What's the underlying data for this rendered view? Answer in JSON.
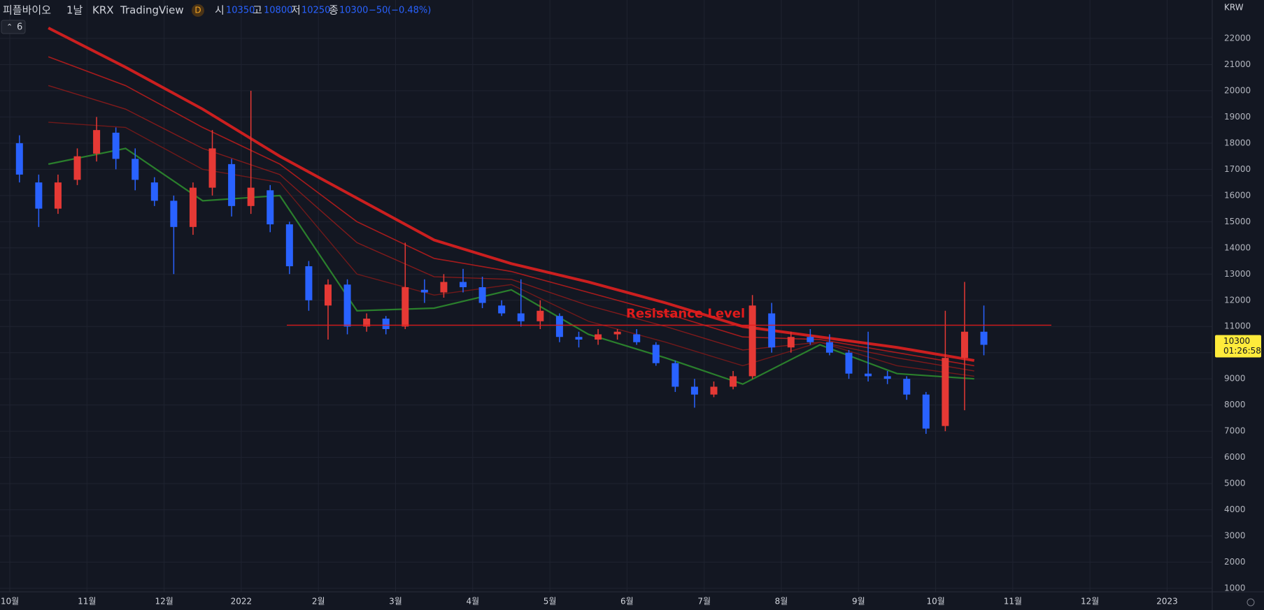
{
  "header": {
    "symbol": "피플바이오",
    "interval": "1날",
    "exchange": "KRX",
    "source": "TradingView",
    "badge": "D",
    "open_label": "시",
    "open": 10350,
    "high_label": "고",
    "high": 10800,
    "low_label": "저",
    "low": 10250,
    "close_label": "종",
    "close": 10300,
    "change": "−50",
    "change_pct": "(−0.48%)",
    "indicators": "6",
    "currency": "KRW"
  },
  "chart_data": {
    "type": "candlestick",
    "categories": [
      "10월",
      "11월",
      "12월",
      "2022",
      "2월",
      "3월",
      "4월",
      "5월",
      "6월",
      "7월",
      "8월",
      "9월",
      "10월",
      "11월",
      "12월",
      "2023"
    ],
    "ohlc": [
      [
        [
          18000,
          18300,
          16500,
          16800
        ],
        [
          16500,
          16800,
          14800,
          15500
        ],
        [
          15500,
          16800,
          15300,
          16500
        ],
        [
          16600,
          17800,
          16400,
          17500
        ]
      ],
      [
        [
          17600,
          19000,
          17300,
          18500
        ],
        [
          18400,
          18600,
          17000,
          17400
        ],
        [
          17400,
          17800,
          16200,
          16600
        ],
        [
          16500,
          16700,
          15600,
          15800
        ]
      ],
      [
        [
          15800,
          16000,
          13000,
          14800
        ],
        [
          14800,
          16500,
          14500,
          16300
        ],
        [
          16300,
          18500,
          16000,
          17800
        ],
        [
          17200,
          17400,
          15200,
          15600
        ]
      ],
      [
        [
          15600,
          20000,
          15300,
          16300
        ],
        [
          16200,
          16400,
          14600,
          14900
        ],
        [
          14900,
          15000,
          13000,
          13300
        ],
        [
          13300,
          13500,
          11600,
          12000
        ]
      ],
      [
        [
          11800,
          12800,
          10500,
          12600
        ],
        [
          12600,
          12800,
          10700,
          11000
        ],
        [
          11000,
          11500,
          10800,
          11300
        ],
        [
          11300,
          11400,
          10700,
          10900
        ]
      ],
      [
        [
          11000,
          14200,
          10900,
          12500
        ],
        [
          12400,
          12800,
          11900,
          12300
        ],
        [
          12300,
          13000,
          12100,
          12700
        ],
        [
          12700,
          13200,
          12300,
          12500
        ]
      ],
      [
        [
          12500,
          12900,
          11700,
          11900
        ],
        [
          11800,
          12000,
          11400,
          11500
        ],
        [
          11500,
          12800,
          11000,
          11200
        ],
        [
          11200,
          12000,
          10900,
          11600
        ]
      ],
      [
        [
          11400,
          11500,
          10400,
          10600
        ],
        [
          10600,
          10800,
          10200,
          10500
        ],
        [
          10500,
          10900,
          10300,
          10700
        ],
        [
          10700,
          10900,
          10500,
          10800
        ]
      ],
      [
        [
          10700,
          10900,
          10300,
          10400
        ],
        [
          10300,
          10400,
          9500,
          9600
        ],
        [
          9600,
          9700,
          8500,
          8700
        ],
        [
          8700,
          9000,
          7900,
          8400
        ]
      ],
      [
        [
          8400,
          8900,
          8300,
          8700
        ],
        [
          8700,
          9300,
          8600,
          9100
        ],
        [
          9100,
          12200,
          9000,
          11800
        ],
        [
          11500,
          11900,
          10000,
          10200
        ]
      ],
      [
        [
          10200,
          10800,
          10000,
          10600
        ],
        [
          10600,
          10900,
          10300,
          10400
        ],
        [
          10400,
          10700,
          9900,
          10000
        ],
        [
          10000,
          10100,
          9000,
          9200
        ]
      ],
      [
        [
          9200,
          10800,
          8900,
          9100
        ],
        [
          9100,
          9300,
          8800,
          9000
        ],
        [
          9000,
          9100,
          8200,
          8400
        ],
        [
          8400,
          8500,
          6900,
          7100
        ]
      ],
      [
        [
          7200,
          11600,
          7000,
          9800
        ],
        [
          9800,
          12700,
          7800,
          10800
        ],
        [
          10800,
          11800,
          9900,
          10300
        ]
      ],
      [],
      [],
      []
    ],
    "up_color": "#e53935",
    "down_color": "#2962ff",
    "ribbon": [
      {
        "color": "#e0201f",
        "values": [
          22400,
          20900,
          19300,
          17500,
          15900,
          14300,
          13400,
          12700,
          11900,
          11000,
          10600,
          10200,
          9700,
          null,
          null,
          null
        ]
      },
      {
        "color": "#b71c1c",
        "values": [
          21300,
          20200,
          18600,
          17200,
          15000,
          13600,
          13100,
          12300,
          11500,
          10600,
          10500,
          10000,
          9500,
          null,
          null,
          null
        ]
      },
      {
        "color": "#8e1b1b",
        "values": [
          20200,
          19300,
          17800,
          16800,
          14200,
          12900,
          12800,
          11800,
          11000,
          10100,
          10400,
          9800,
          9300,
          null,
          null,
          null
        ]
      },
      {
        "color": "#7a1919",
        "values": [
          18800,
          18600,
          17000,
          16500,
          13000,
          12200,
          12600,
          11200,
          10400,
          9500,
          10400,
          9500,
          9100,
          null,
          null,
          null
        ]
      },
      {
        "color": "#2e8b2e",
        "values": [
          17200,
          17800,
          15800,
          16000,
          11600,
          11700,
          12400,
          10700,
          9800,
          8800,
          10300,
          9200,
          9000,
          null,
          null,
          null
        ]
      }
    ],
    "annotation": {
      "label": "Resistance Level",
      "value": 11050,
      "color": "#e01b1b"
    },
    "last_price": 10300,
    "countdown": "01:26:58",
    "ylim": [
      867,
      23467
    ],
    "yticks": [
      1000,
      2000,
      3000,
      4000,
      5000,
      6000,
      7000,
      8000,
      9000,
      10000,
      11000,
      12000,
      13000,
      14000,
      15000,
      16000,
      17000,
      18000,
      19000,
      20000,
      21000,
      22000
    ],
    "grid": true
  }
}
